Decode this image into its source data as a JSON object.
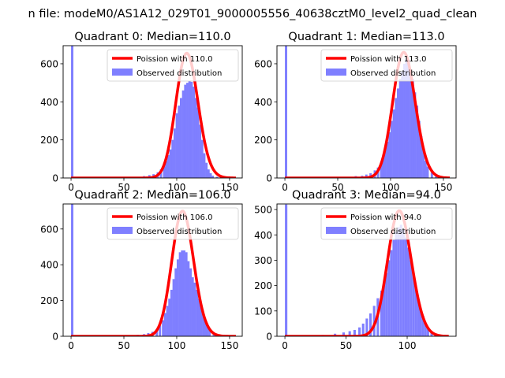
{
  "figure": {
    "suptitle": "n file: modeM0/AS1A12_029T01_9000005556_40638cztM0_level2_quad_clean"
  },
  "chart_data": [
    {
      "type": "bar",
      "title": "Quadrant 0: Median=110.0",
      "xlim": [
        -7.5,
        162
      ],
      "ylim": [
        0,
        695
      ],
      "xticks": [
        0,
        50,
        100,
        150
      ],
      "yticks": [
        0,
        200,
        400,
        600
      ],
      "legend": {
        "position": "top-right",
        "entries": [
          "Poission with 110.0",
          "Observed distribution"
        ]
      },
      "median": 110.0,
      "poisson_amplitude": 655,
      "hist_bins": {
        "x": [
          0,
          52,
          63,
          68,
          73,
          77,
          81,
          84,
          87,
          89,
          91,
          93,
          95,
          97,
          99,
          101,
          103,
          105,
          107,
          109,
          111,
          113,
          115,
          117,
          119,
          121,
          123,
          125,
          127,
          129,
          131,
          133,
          137,
          141
        ],
        "width": 2.2,
        "values": [
          700,
          3,
          6,
          10,
          15,
          20,
          30,
          45,
          60,
          90,
          120,
          150,
          200,
          260,
          340,
          380,
          420,
          460,
          490,
          500,
          510,
          505,
          480,
          420,
          370,
          280,
          200,
          130,
          80,
          45,
          25,
          12,
          6,
          3
        ]
      },
      "series": [
        {
          "name": "Poission with 110.0",
          "color": "#ff0000"
        },
        {
          "name": "Observed distribution",
          "color": "#7f7fff"
        }
      ]
    },
    {
      "type": "bar",
      "title": "Quadrant 1: Median=113.0",
      "xlim": [
        -7.5,
        162
      ],
      "ylim": [
        0,
        695
      ],
      "xticks": [
        0,
        50,
        100,
        150
      ],
      "yticks": [
        0,
        200,
        400,
        600
      ],
      "legend": {
        "position": "top-right",
        "entries": [
          "Poission with 113.0",
          "Observed distribution"
        ]
      },
      "median": 113.0,
      "poisson_amplitude": 660,
      "hist_bins": {
        "x": [
          0,
          60,
          66,
          72,
          76,
          80,
          84,
          87,
          90,
          92,
          94,
          96,
          98,
          100,
          102,
          104,
          106,
          108,
          110,
          112,
          114,
          116,
          118,
          120,
          122,
          124,
          126,
          128,
          130,
          132,
          134,
          138,
          142,
          146
        ],
        "width": 2.2,
        "values": [
          700,
          5,
          10,
          12,
          18,
          25,
          40,
          55,
          80,
          110,
          150,
          190,
          240,
          300,
          360,
          420,
          470,
          520,
          560,
          600,
          630,
          620,
          560,
          520,
          450,
          380,
          300,
          220,
          150,
          90,
          60,
          30,
          15,
          5
        ]
      },
      "series": [
        {
          "name": "Poission with 113.0",
          "color": "#ff0000"
        },
        {
          "name": "Observed distribution",
          "color": "#7f7fff"
        }
      ]
    },
    {
      "type": "bar",
      "title": "Quadrant 2: Median=106.0",
      "xlim": [
        -7.5,
        162
      ],
      "ylim": [
        0,
        740
      ],
      "xticks": [
        0,
        50,
        100,
        150
      ],
      "yticks": [
        0,
        200,
        400,
        600
      ],
      "legend": {
        "position": "top-right",
        "entries": [
          "Poission with 106.0",
          "Observed distribution"
        ]
      },
      "median": 106.0,
      "poisson_amplitude": 700,
      "hist_bins": {
        "x": [
          0,
          55,
          62,
          68,
          72,
          76,
          80,
          83,
          86,
          88,
          90,
          92,
          94,
          96,
          98,
          100,
          102,
          104,
          106,
          108,
          110,
          112,
          114,
          116,
          118,
          120,
          122,
          124,
          126,
          128,
          130,
          134,
          138,
          142
        ],
        "width": 2.2,
        "values": [
          740,
          4,
          8,
          12,
          18,
          25,
          40,
          60,
          90,
          130,
          170,
          210,
          260,
          320,
          380,
          430,
          470,
          480,
          480,
          470,
          420,
          380,
          330,
          300,
          260,
          210,
          170,
          130,
          90,
          60,
          35,
          18,
          8,
          4
        ]
      },
      "series": [
        {
          "name": "Poission with 106.0",
          "color": "#ff0000"
        },
        {
          "name": "Observed distribution",
          "color": "#7f7fff"
        }
      ]
    },
    {
      "type": "bar",
      "title": "Quadrant 3: Median=94.0",
      "xlim": [
        -6.5,
        140
      ],
      "ylim": [
        0,
        522
      ],
      "xticks": [
        0,
        50,
        100
      ],
      "yticks": [
        0,
        100,
        200,
        300,
        400,
        500
      ],
      "legend": {
        "position": "top-right",
        "entries": [
          "Poission with 94.0",
          "Observed distribution"
        ]
      },
      "median": 94.0,
      "poisson_amplitude": 495,
      "hist_bins": {
        "x": [
          0,
          30,
          40,
          47,
          52,
          56,
          60,
          63,
          66,
          69,
          72,
          75,
          78,
          80,
          82,
          84,
          86,
          88,
          90,
          92,
          94,
          96,
          98,
          100,
          102,
          104,
          106,
          108,
          110,
          112,
          114,
          116,
          119,
          122
        ],
        "width": 2,
        "values": [
          520,
          5,
          10,
          15,
          20,
          25,
          35,
          50,
          70,
          90,
          120,
          150,
          180,
          210,
          250,
          300,
          340,
          380,
          410,
          430,
          440,
          420,
          390,
          350,
          300,
          250,
          200,
          150,
          110,
          80,
          50,
          30,
          15,
          8
        ]
      },
      "series": [
        {
          "name": "Poission with 94.0",
          "color": "#ff0000"
        },
        {
          "name": "Observed distribution",
          "color": "#7f7fff"
        }
      ]
    }
  ]
}
